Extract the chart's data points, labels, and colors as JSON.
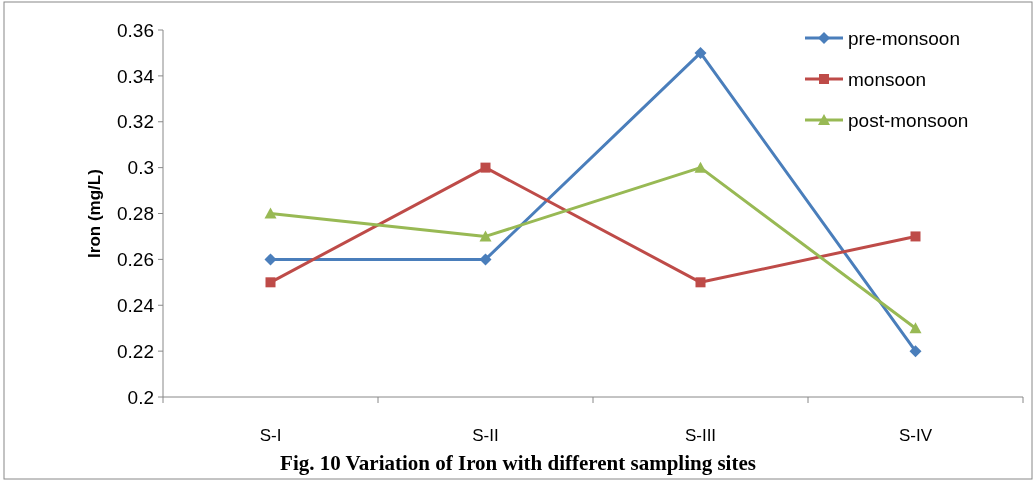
{
  "chart_data": {
    "type": "line",
    "title": "Fig. 10 Variation of Iron with different sampling sites",
    "ylabel": "Iron (mg/L)",
    "categories": [
      "S-I",
      "S-II",
      "S-III",
      "S-IV"
    ],
    "series": [
      {
        "name": "pre-monsoon",
        "color": "#4a7ebb",
        "marker": "diamond",
        "values": [
          0.26,
          0.26,
          0.35,
          0.22
        ]
      },
      {
        "name": "monsoon",
        "color": "#be4b48",
        "marker": "square",
        "values": [
          0.25,
          0.3,
          0.25,
          0.27
        ]
      },
      {
        "name": "post-monsoon",
        "color": "#98b954",
        "marker": "triangle",
        "values": [
          0.28,
          0.27,
          0.3,
          0.23
        ]
      }
    ],
    "ylim": [
      0.2,
      0.36
    ],
    "yticks": [
      0.2,
      0.22,
      0.24,
      0.26,
      0.28,
      0.3,
      0.32,
      0.34,
      0.36
    ],
    "grid": false,
    "legend": "top right",
    "line_style": "solid"
  }
}
